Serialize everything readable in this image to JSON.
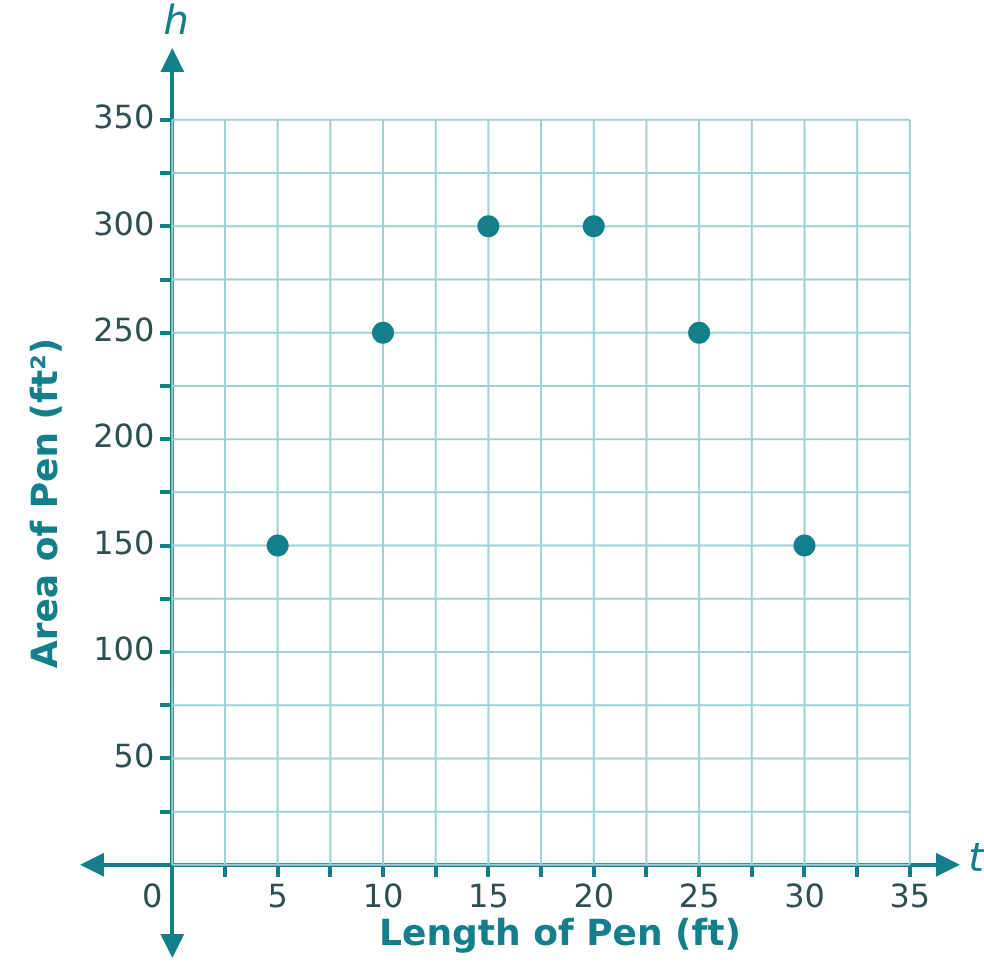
{
  "chart_data": {
    "type": "scatter",
    "xlabel": "Length of Pen (ft)",
    "ylabel": "Area of Pen (ft²)",
    "x": [
      5,
      10,
      15,
      20,
      25,
      30
    ],
    "series": [
      {
        "color": "#127f8a",
        "values": [
          150,
          250,
          300,
          300,
          250,
          150
        ]
      }
    ],
    "xlim": [
      -4,
      37
    ],
    "ylim": [
      -40,
      380
    ],
    "xticks": [
      {
        "value": 0,
        "label": "0"
      },
      {
        "value": 2.5,
        "label": null
      },
      5,
      {
        "value": 7.5,
        "label": null
      },
      10,
      {
        "value": 12.5,
        "label": null
      },
      15,
      {
        "value": 17.5,
        "label": null
      },
      20,
      {
        "value": 22.5,
        "label": null
      },
      25,
      {
        "value": 27.5,
        "label": null
      },
      30,
      {
        "value": 32.5,
        "label": null
      },
      35
    ],
    "yticks": [
      {
        "value": 0,
        "label": null
      },
      {
        "value": 25,
        "label": null
      },
      50,
      {
        "value": 75,
        "label": null
      },
      100,
      {
        "value": 125,
        "label": null
      },
      150,
      {
        "value": 175,
        "label": null
      },
      200,
      {
        "value": 225,
        "label": null
      },
      250,
      {
        "value": 275,
        "label": null
      },
      300,
      {
        "value": 325,
        "label": null
      },
      350
    ],
    "grid": true,
    "marker": "circle",
    "legend": false,
    "annotations": [
      "h",
      "t"
    ]
  }
}
